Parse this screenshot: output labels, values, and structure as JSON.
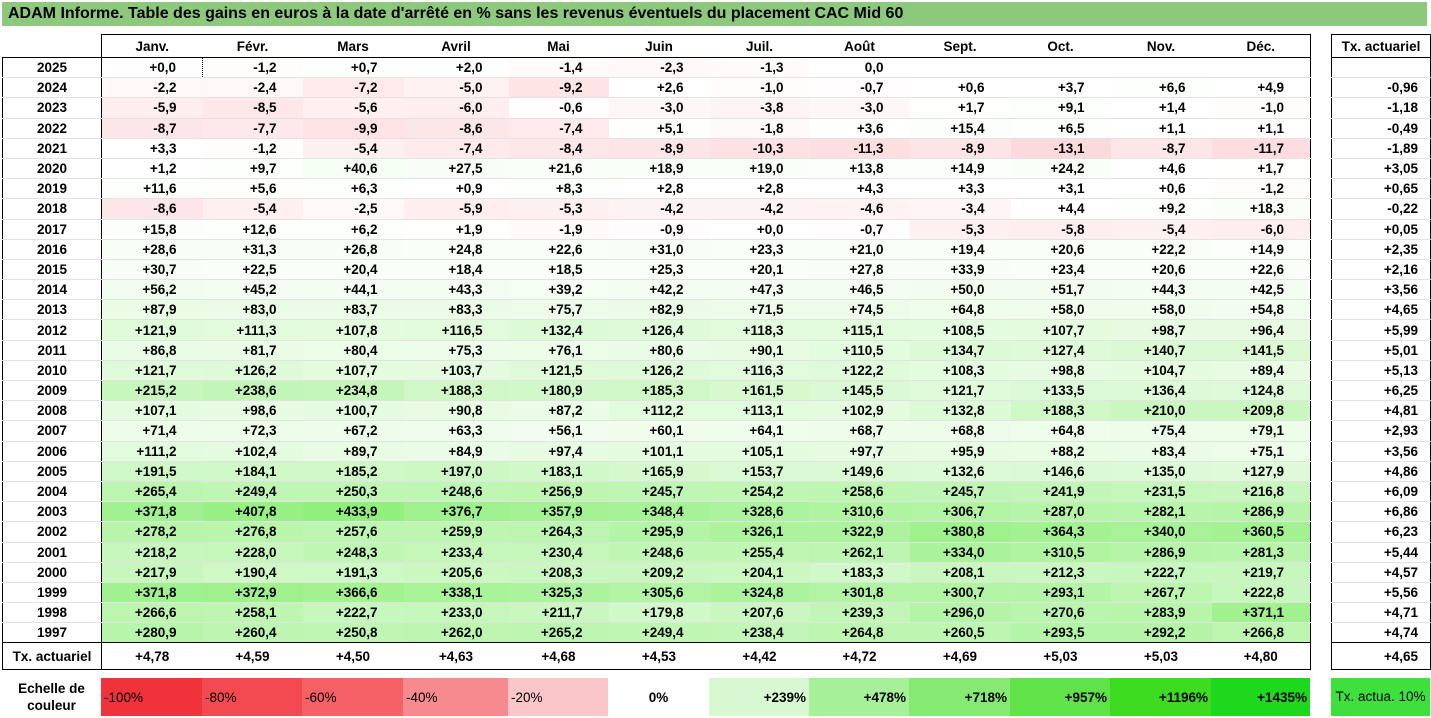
{
  "title": "ADAM Informe. Table des gains en euros à la date d'arrêté en % sans les revenus éventuels du placement CAC Mid 60",
  "months": [
    "Janv.",
    "Févr.",
    "Mars",
    "Avril",
    "Mai",
    "Juin",
    "Juil.",
    "Août",
    "Sept.",
    "Oct.",
    "Nov.",
    "Déc."
  ],
  "tx_header": "Tx. actuariel",
  "rows": [
    {
      "year": "2025",
      "values": [
        "+0,0",
        "-1,2",
        "+0,7",
        "+2,0",
        "-1,4",
        "-2,3",
        "-1,3",
        "0,0",
        "",
        "",
        "",
        ""
      ],
      "tx": ""
    },
    {
      "year": "2024",
      "values": [
        "-2,2",
        "-2,4",
        "-7,2",
        "-5,0",
        "-9,2",
        "+2,6",
        "-1,0",
        "-0,7",
        "+0,6",
        "+3,7",
        "+6,6",
        "+4,9"
      ],
      "tx": "-0,96"
    },
    {
      "year": "2023",
      "values": [
        "-5,9",
        "-8,5",
        "-5,6",
        "-6,0",
        "-0,6",
        "-3,0",
        "-3,8",
        "-3,0",
        "+1,7",
        "+9,1",
        "+1,4",
        "-1,0"
      ],
      "tx": "-1,18"
    },
    {
      "year": "2022",
      "values": [
        "-8,7",
        "-7,7",
        "-9,9",
        "-8,6",
        "-7,4",
        "+5,1",
        "-1,8",
        "+3,6",
        "+15,4",
        "+6,5",
        "+1,1",
        "+1,1"
      ],
      "tx": "-0,49"
    },
    {
      "year": "2021",
      "values": [
        "+3,3",
        "-1,2",
        "-5,4",
        "-7,4",
        "-8,4",
        "-8,9",
        "-10,3",
        "-11,3",
        "-8,9",
        "-13,1",
        "-8,7",
        "-11,7"
      ],
      "tx": "-1,89"
    },
    {
      "year": "2020",
      "values": [
        "+1,2",
        "+9,7",
        "+40,6",
        "+27,5",
        "+21,6",
        "+18,9",
        "+19,0",
        "+13,8",
        "+14,9",
        "+24,2",
        "+4,6",
        "+1,7"
      ],
      "tx": "+3,05"
    },
    {
      "year": "2019",
      "values": [
        "+11,6",
        "+5,6",
        "+6,3",
        "+0,9",
        "+8,3",
        "+2,8",
        "+2,8",
        "+4,3",
        "+3,3",
        "+3,1",
        "+0,6",
        "-1,2"
      ],
      "tx": "+0,65"
    },
    {
      "year": "2018",
      "values": [
        "-8,6",
        "-5,4",
        "-2,5",
        "-5,9",
        "-5,3",
        "-4,2",
        "-4,2",
        "-4,6",
        "-3,4",
        "+4,4",
        "+9,2",
        "+18,3"
      ],
      "tx": "-0,22"
    },
    {
      "year": "2017",
      "values": [
        "+15,8",
        "+12,6",
        "+6,2",
        "+1,9",
        "-1,9",
        "-0,9",
        "+0,0",
        "-0,7",
        "-5,3",
        "-5,8",
        "-5,4",
        "-6,0"
      ],
      "tx": "+0,05"
    },
    {
      "year": "2016",
      "values": [
        "+28,6",
        "+31,3",
        "+26,8",
        "+24,8",
        "+22,6",
        "+31,0",
        "+23,3",
        "+21,0",
        "+19,4",
        "+20,6",
        "+22,2",
        "+14,9"
      ],
      "tx": "+2,35"
    },
    {
      "year": "2015",
      "values": [
        "+30,7",
        "+22,5",
        "+20,4",
        "+18,4",
        "+18,5",
        "+25,3",
        "+20,1",
        "+27,8",
        "+33,9",
        "+23,4",
        "+20,6",
        "+22,6"
      ],
      "tx": "+2,16"
    },
    {
      "year": "2014",
      "values": [
        "+56,2",
        "+45,2",
        "+44,1",
        "+43,3",
        "+39,2",
        "+42,2",
        "+47,3",
        "+46,5",
        "+50,0",
        "+51,7",
        "+44,3",
        "+42,5"
      ],
      "tx": "+3,56"
    },
    {
      "year": "2013",
      "values": [
        "+87,9",
        "+83,0",
        "+83,7",
        "+83,3",
        "+75,7",
        "+82,9",
        "+71,5",
        "+74,5",
        "+64,8",
        "+58,0",
        "+58,0",
        "+54,8"
      ],
      "tx": "+4,65"
    },
    {
      "year": "2012",
      "values": [
        "+121,9",
        "+111,3",
        "+107,8",
        "+116,5",
        "+132,4",
        "+126,4",
        "+118,3",
        "+115,1",
        "+108,5",
        "+107,7",
        "+98,7",
        "+96,4"
      ],
      "tx": "+5,99"
    },
    {
      "year": "2011",
      "values": [
        "+86,8",
        "+81,7",
        "+80,4",
        "+75,3",
        "+76,1",
        "+80,6",
        "+90,1",
        "+110,5",
        "+134,7",
        "+127,4",
        "+140,7",
        "+141,5"
      ],
      "tx": "+5,01"
    },
    {
      "year": "2010",
      "values": [
        "+121,7",
        "+126,2",
        "+107,7",
        "+103,7",
        "+121,5",
        "+126,2",
        "+116,3",
        "+122,2",
        "+108,3",
        "+98,8",
        "+104,7",
        "+89,4"
      ],
      "tx": "+5,13"
    },
    {
      "year": "2009",
      "values": [
        "+215,2",
        "+238,6",
        "+234,8",
        "+188,3",
        "+180,9",
        "+185,3",
        "+161,5",
        "+145,5",
        "+121,7",
        "+133,5",
        "+136,4",
        "+124,8"
      ],
      "tx": "+6,25"
    },
    {
      "year": "2008",
      "values": [
        "+107,1",
        "+98,6",
        "+100,7",
        "+90,8",
        "+87,2",
        "+112,2",
        "+113,1",
        "+102,9",
        "+132,8",
        "+188,3",
        "+210,0",
        "+209,8"
      ],
      "tx": "+4,81"
    },
    {
      "year": "2007",
      "values": [
        "+71,4",
        "+72,3",
        "+67,2",
        "+63,3",
        "+56,1",
        "+60,1",
        "+64,1",
        "+68,7",
        "+68,8",
        "+64,8",
        "+75,4",
        "+79,1"
      ],
      "tx": "+2,93"
    },
    {
      "year": "2006",
      "values": [
        "+111,2",
        "+102,4",
        "+89,7",
        "+84,9",
        "+97,4",
        "+101,1",
        "+105,1",
        "+97,7",
        "+95,9",
        "+88,2",
        "+83,4",
        "+75,1"
      ],
      "tx": "+3,56"
    },
    {
      "year": "2005",
      "values": [
        "+191,5",
        "+184,1",
        "+185,2",
        "+197,0",
        "+183,1",
        "+165,9",
        "+153,7",
        "+149,6",
        "+132,6",
        "+146,6",
        "+135,0",
        "+127,9"
      ],
      "tx": "+4,86"
    },
    {
      "year": "2004",
      "values": [
        "+265,4",
        "+249,4",
        "+250,3",
        "+248,6",
        "+256,9",
        "+245,7",
        "+254,2",
        "+258,6",
        "+245,7",
        "+241,9",
        "+231,5",
        "+216,8"
      ],
      "tx": "+6,09"
    },
    {
      "year": "2003",
      "values": [
        "+371,8",
        "+407,8",
        "+433,9",
        "+376,7",
        "+357,9",
        "+348,4",
        "+328,6",
        "+310,6",
        "+306,7",
        "+287,0",
        "+282,1",
        "+286,9"
      ],
      "tx": "+6,86"
    },
    {
      "year": "2002",
      "values": [
        "+278,2",
        "+276,8",
        "+257,6",
        "+259,9",
        "+264,3",
        "+295,9",
        "+326,1",
        "+322,9",
        "+380,8",
        "+364,3",
        "+340,0",
        "+360,5"
      ],
      "tx": "+6,23"
    },
    {
      "year": "2001",
      "values": [
        "+218,2",
        "+228,0",
        "+248,3",
        "+233,4",
        "+230,4",
        "+248,6",
        "+255,4",
        "+262,1",
        "+334,0",
        "+310,5",
        "+286,9",
        "+281,3"
      ],
      "tx": "+5,44"
    },
    {
      "year": "2000",
      "values": [
        "+217,9",
        "+190,4",
        "+191,3",
        "+205,6",
        "+208,3",
        "+209,2",
        "+204,1",
        "+183,3",
        "+208,1",
        "+212,3",
        "+222,7",
        "+219,7"
      ],
      "tx": "+4,57"
    },
    {
      "year": "1999",
      "values": [
        "+371,8",
        "+372,9",
        "+366,6",
        "+338,1",
        "+325,3",
        "+305,6",
        "+324,8",
        "+301,8",
        "+300,7",
        "+293,1",
        "+267,7",
        "+222,8"
      ],
      "tx": "+5,56"
    },
    {
      "year": "1998",
      "values": [
        "+266,6",
        "+258,1",
        "+222,7",
        "+233,0",
        "+211,7",
        "+179,8",
        "+207,6",
        "+239,3",
        "+296,0",
        "+270,6",
        "+283,9",
        "+371,1"
      ],
      "tx": "+4,71"
    },
    {
      "year": "1997",
      "values": [
        "+280,9",
        "+260,4",
        "+250,8",
        "+262,0",
        "+265,2",
        "+249,4",
        "+238,4",
        "+264,8",
        "+260,5",
        "+293,5",
        "+292,2",
        "+266,8"
      ],
      "tx": "+4,74"
    }
  ],
  "footer": {
    "label": "Tx. actuariel",
    "values": [
      "+4,78",
      "+4,59",
      "+4,50",
      "+4,63",
      "+4,68",
      "+4,53",
      "+4,42",
      "+4,72",
      "+4,69",
      "+5,03",
      "+5,03",
      "+4,80"
    ],
    "tx": "+4,65"
  },
  "scale": {
    "label": "Echelle de couleur",
    "steps": [
      {
        "text": "-100%",
        "color": "#f0333b"
      },
      {
        "text": "-80%",
        "color": "#f24a50"
      },
      {
        "text": "-60%",
        "color": "#f56166"
      },
      {
        "text": "-40%",
        "color": "#f78a8e"
      },
      {
        "text": "-20%",
        "color": "#fbc6c8"
      },
      {
        "text": "0%",
        "color": "#ffffff"
      },
      {
        "text": "+239%",
        "color": "#d8f8d2"
      },
      {
        "text": "+478%",
        "color": "#a6f097"
      },
      {
        "text": "+718%",
        "color": "#84ea72"
      },
      {
        "text": "+957%",
        "color": "#5fe348"
      },
      {
        "text": "+1196%",
        "color": "#3ddc20"
      },
      {
        "text": "+1435%",
        "color": "#1ed81e"
      }
    ],
    "tx_label": "Tx. actua. 10%",
    "tx_color": "#3ee03e"
  }
}
